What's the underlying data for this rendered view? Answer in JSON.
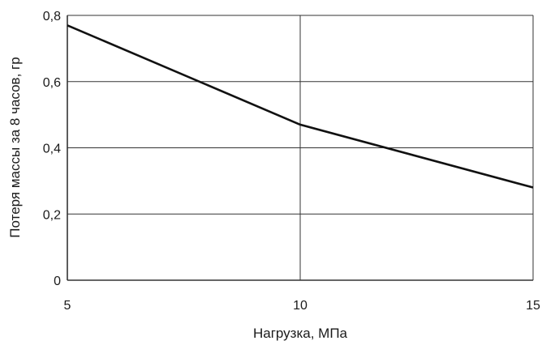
{
  "chart_data": {
    "type": "line",
    "xlabel": "Нагрузка, МПа",
    "ylabel": "Потеря массы за 8 часов, гр",
    "xlim": [
      5,
      15
    ],
    "ylim": [
      0,
      0.8
    ],
    "x_ticks": [
      5,
      10,
      15
    ],
    "y_ticks": [
      0,
      0.2,
      0.4,
      0.6,
      0.8
    ],
    "x_tick_labels": [
      "5",
      "10",
      "15"
    ],
    "y_tick_labels": [
      "0",
      "0,2",
      "0,4",
      "0,6",
      "0,8"
    ],
    "grid": true,
    "series": [
      {
        "x": [
          5,
          10,
          15
        ],
        "y": [
          0.77,
          0.47,
          0.28
        ]
      }
    ],
    "colors": {
      "line": "#111111",
      "grid": "#333333",
      "plot_border": "#c8c8c8"
    }
  }
}
